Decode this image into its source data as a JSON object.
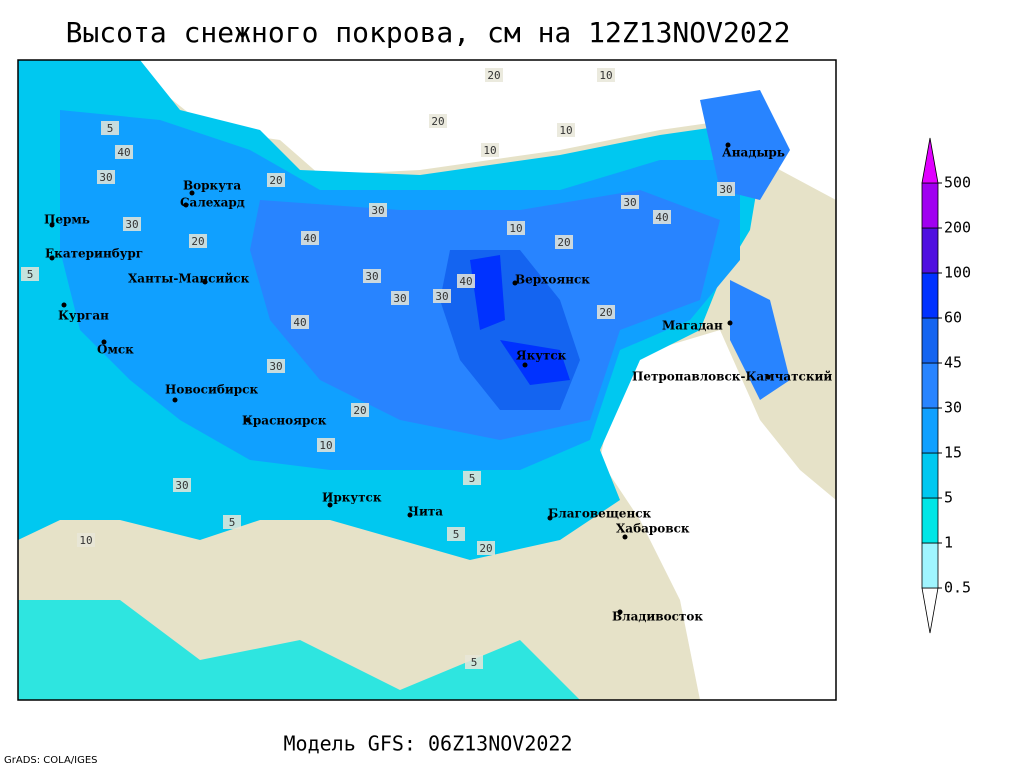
{
  "title": "Высота снежного покрова, см на 12Z13NOV2022",
  "footer": "Модель GFS: 06Z13NOV2022",
  "credit": "GrADS: COLA/IGES",
  "legend": {
    "levels": [
      0.5,
      1,
      5,
      15,
      30,
      45,
      60,
      100,
      200,
      500
    ],
    "colors": [
      "#ffffff",
      "#a0f5ff",
      "#00e6e6",
      "#00c8f0",
      "#10a0ff",
      "#2884ff",
      "#1464f0",
      "#0032ff",
      "#5010e0",
      "#a000f0",
      "#e000ff"
    ]
  },
  "cities": [
    "Воркута",
    "Салехард",
    "Пермь",
    "Екатеринбург",
    "Ханты-Мансийск",
    "Курган",
    "Омск",
    "Новосибирск",
    "Красноярск",
    "Иркутск",
    "Чита",
    "Благовещенск",
    "Хабаровск",
    "Владивосток",
    "Якутск",
    "Верхоянск",
    "Магадан",
    "Петропавловск-Камчатский",
    "Анадырь"
  ],
  "contour_labels": [
    20,
    10,
    5,
    20,
    10,
    20,
    30,
    40,
    30,
    20,
    30,
    40,
    30,
    30,
    30,
    40,
    20,
    40,
    30,
    30,
    10,
    20,
    10,
    5,
    5,
    5,
    10,
    20,
    30,
    40,
    30,
    20,
    5,
    10,
    5
  ]
}
